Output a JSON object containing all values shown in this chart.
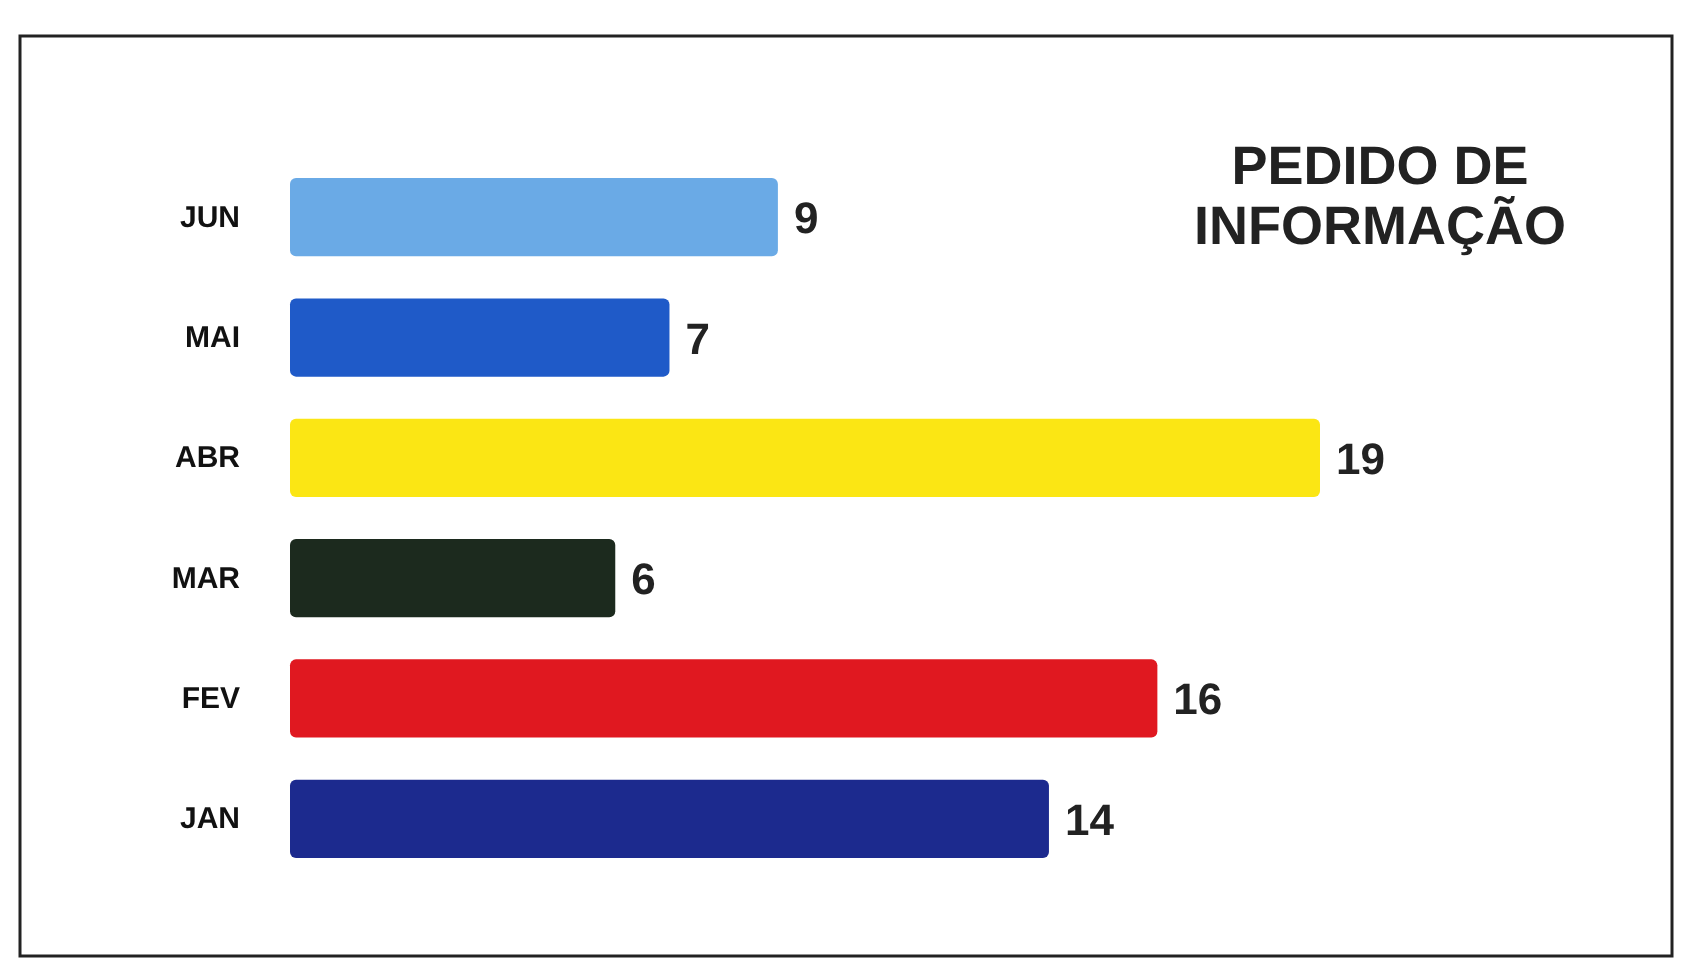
{
  "chart_data": {
    "type": "bar",
    "orientation": "horizontal",
    "title": "PEDIDO DE\nINFORMAÇÃO",
    "categories": [
      "JUN",
      "MAI",
      "ABR",
      "MAR",
      "FEV",
      "JAN"
    ],
    "values": [
      9,
      7,
      19,
      6,
      16,
      14
    ],
    "colors": [
      "#6aaae6",
      "#1f5ac8",
      "#fbe614",
      "#1c2a1e",
      "#e01820",
      "#1c2a8e"
    ],
    "data_labels": true
  }
}
